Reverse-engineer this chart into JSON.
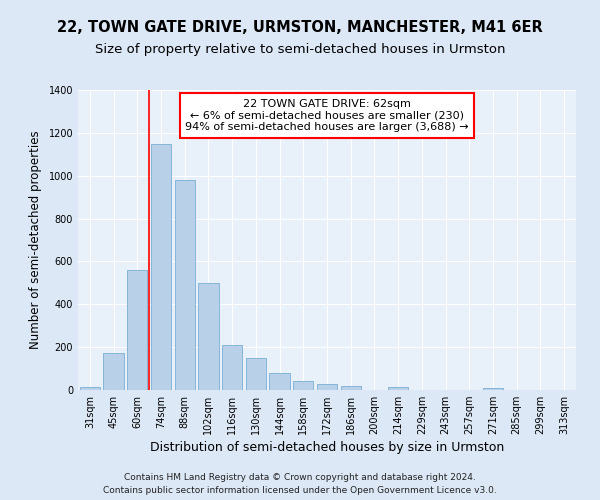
{
  "title": "22, TOWN GATE DRIVE, URMSTON, MANCHESTER, M41 6ER",
  "subtitle": "Size of property relative to semi-detached houses in Urmston",
  "xlabel": "Distribution of semi-detached houses by size in Urmston",
  "ylabel": "Number of semi-detached properties",
  "footer1": "Contains HM Land Registry data © Crown copyright and database right 2024.",
  "footer2": "Contains public sector information licensed under the Open Government Licence v3.0.",
  "categories": [
    "31sqm",
    "45sqm",
    "60sqm",
    "74sqm",
    "88sqm",
    "102sqm",
    "116sqm",
    "130sqm",
    "144sqm",
    "158sqm",
    "172sqm",
    "186sqm",
    "200sqm",
    "214sqm",
    "229sqm",
    "243sqm",
    "257sqm",
    "271sqm",
    "285sqm",
    "299sqm",
    "313sqm"
  ],
  "values": [
    15,
    175,
    560,
    1150,
    980,
    500,
    210,
    148,
    80,
    42,
    27,
    20,
    0,
    15,
    0,
    0,
    0,
    10,
    0,
    0,
    0
  ],
  "bar_color": "#b8d0e8",
  "bar_edge_color": "#7aafd4",
  "property_bar_index": 2,
  "annotation_line1": "22 TOWN GATE DRIVE: 62sqm",
  "annotation_line2": "← 6% of semi-detached houses are smaller (230)",
  "annotation_line3": "94% of semi-detached houses are larger (3,688) →",
  "annotation_box_facecolor": "white",
  "annotation_box_edgecolor": "red",
  "vline_color": "red",
  "vline_x": 2.5,
  "ylim": [
    0,
    1400
  ],
  "yticks": [
    0,
    200,
    400,
    600,
    800,
    1000,
    1200,
    1400
  ],
  "fig_bg_color": "#dce8f5",
  "plot_bg_color": "#e8f0fa",
  "grid_color": "white",
  "title_fontsize": 10.5,
  "subtitle_fontsize": 9.5,
  "xlabel_fontsize": 9,
  "ylabel_fontsize": 8.5,
  "tick_fontsize": 7,
  "annot_fontsize": 8,
  "footer_fontsize": 6.5
}
